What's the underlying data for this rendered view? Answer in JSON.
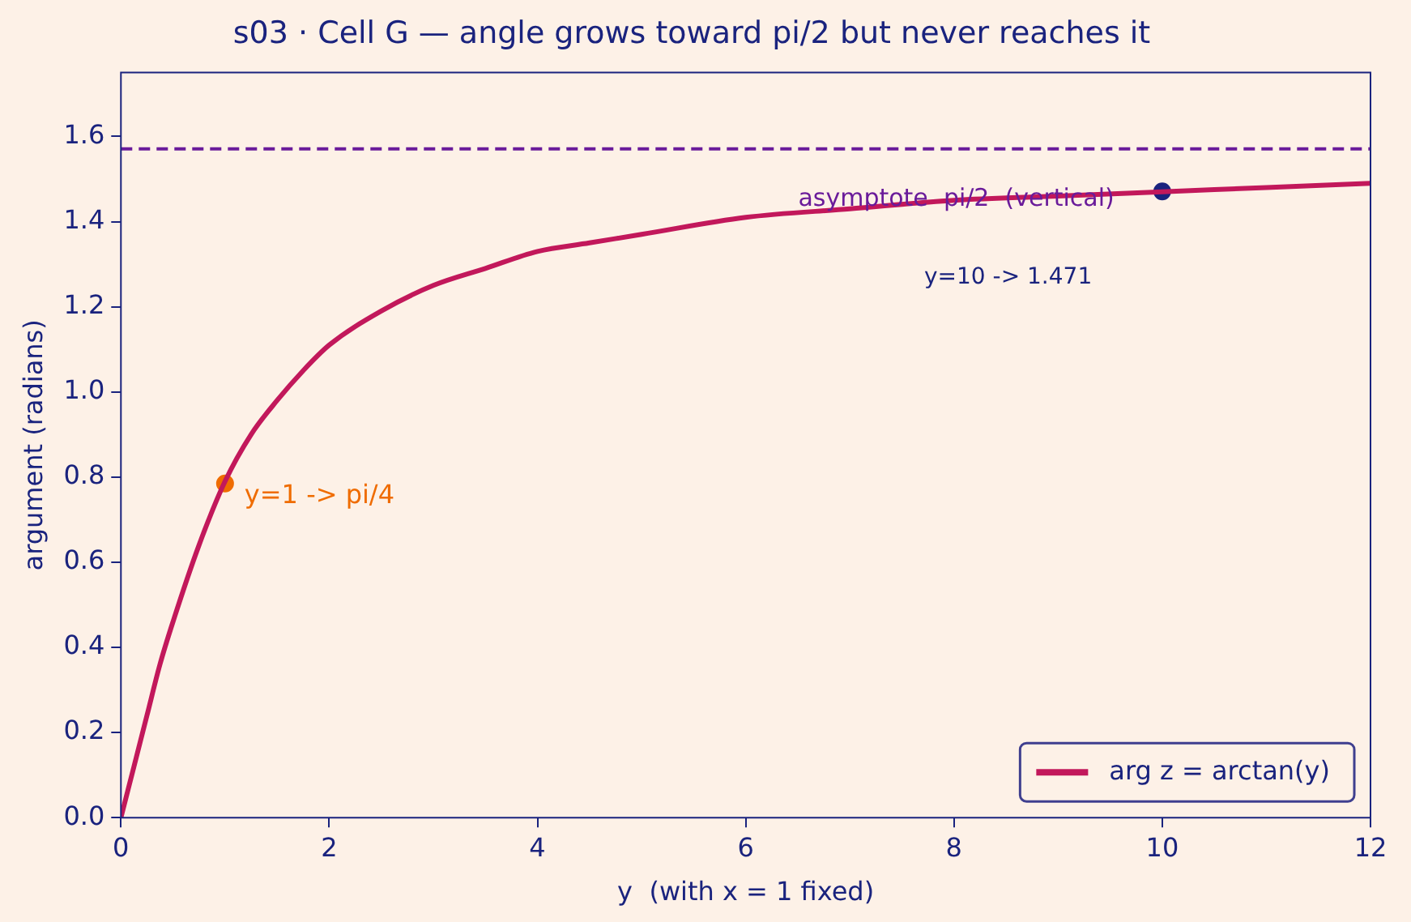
{
  "chart_data": {
    "type": "line",
    "title": "s03 · Cell G — angle grows toward pi/2 but never reaches it",
    "xlabel": "y  (with x = 1 fixed)",
    "ylabel": "argument (radians)",
    "x": [
      0,
      0.125,
      0.25,
      0.375,
      0.5,
      0.75,
      1,
      1.25,
      1.5,
      1.75,
      2,
      2.5,
      3,
      3.5,
      4,
      4.5,
      5,
      6,
      7,
      8,
      9,
      10,
      11,
      12
    ],
    "series": [
      {
        "name": "arg z = arctan(y)",
        "color": "#c2185b",
        "marker": "none",
        "values": [
          0,
          0.12,
          0.24,
          0.36,
          0.46,
          0.64,
          0.79,
          0.9,
          0.98,
          1.05,
          1.11,
          1.19,
          1.25,
          1.29,
          1.33,
          1.35,
          1.37,
          1.41,
          1.43,
          1.45,
          1.46,
          1.47,
          1.48,
          1.49
        ]
      },
      {
        "type": "scatter",
        "color": "#ef6c00",
        "marker": "circle",
        "x": [
          1
        ],
        "values": [
          0.785
        ]
      },
      {
        "type": "scatter",
        "color": "#1a237e",
        "marker": "circle",
        "x": [
          10
        ],
        "values": [
          1.471
        ]
      }
    ],
    "annotations": [
      {
        "text": "y=1 -> pi/4",
        "x": 1,
        "y": 0.785
      },
      "y=10 -> 1.471"
    ],
    "ref_lines": [
      {
        "axis": "y",
        "value": 1.571,
        "label": "asymptote  pi/2  (vertical)",
        "color": "#6a1b9a",
        "line_style": "dashed"
      }
    ],
    "xlim": [
      0,
      12
    ],
    "xticks": [
      0,
      2,
      4,
      6,
      8,
      10,
      12
    ],
    "ylim": [
      0,
      1.75
    ],
    "yticks": [
      {
        "value": 0,
        "label": "0.0"
      },
      {
        "value": 0.2,
        "label": "0.2"
      },
      {
        "value": 0.4,
        "label": "0.4"
      },
      {
        "value": 0.6,
        "label": "0.6"
      },
      {
        "value": 0.8,
        "label": "0.8"
      },
      {
        "value": 1,
        "label": "1.0"
      },
      {
        "value": 1.2,
        "label": "1.2"
      },
      {
        "value": 1.4,
        "label": "1.4"
      },
      {
        "value": 1.6,
        "label": "1.6"
      }
    ],
    "grid": false,
    "legend": "bottom right",
    "line_style": "solid"
  }
}
